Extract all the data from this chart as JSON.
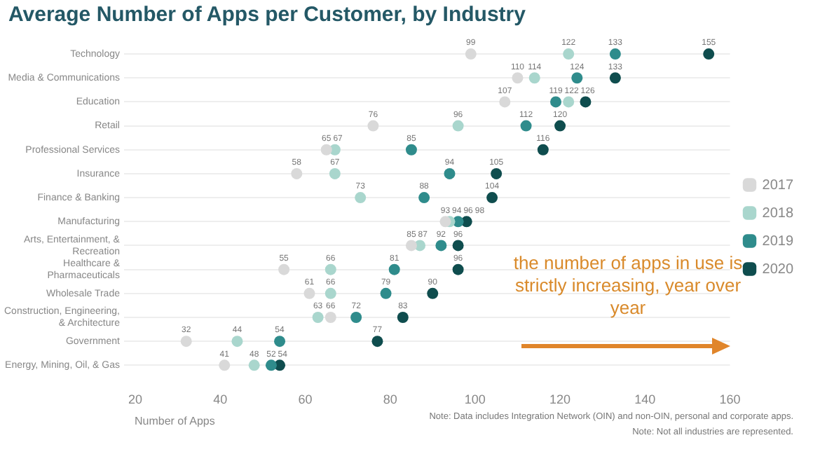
{
  "chart_data": {
    "type": "scatter",
    "orientation": "horizontal",
    "title": "Average Number of Apps per Customer, by Industry",
    "xlabel": "Number of Apps",
    "categories": [
      "Technology",
      "Media & Communications",
      "Education",
      "Retail",
      "Professional Services",
      "Insurance",
      "Finance & Banking",
      "Manufacturing",
      "Arts, Entertainment, & Recreation",
      "Healthcare & Pharmaceuticals",
      "Wholesale Trade",
      "Construction, Engineering, & Architecture",
      "Government",
      "Energy, Mining, Oil, & Gas"
    ],
    "series": [
      {
        "name": "2017",
        "color": "#d9d9d9",
        "values": [
          99,
          110,
          107,
          76,
          65,
          58,
          null,
          93,
          85,
          55,
          61,
          66,
          32,
          41
        ]
      },
      {
        "name": "2018",
        "color": "#a9d6cd",
        "values": [
          122,
          114,
          122,
          96,
          67,
          67,
          73,
          94,
          87,
          66,
          66,
          63,
          44,
          48
        ]
      },
      {
        "name": "2019",
        "color": "#2f8c8c",
        "values": [
          133,
          124,
          119,
          112,
          85,
          94,
          88,
          96,
          92,
          81,
          79,
          72,
          54,
          52
        ]
      },
      {
        "name": "2020",
        "color": "#0f4d4e",
        "values": [
          155,
          133,
          126,
          120,
          116,
          105,
          104,
          98,
          96,
          96,
          90,
          83,
          77,
          54
        ]
      }
    ],
    "xlim": [
      20,
      160
    ],
    "xticks": [
      20,
      40,
      60,
      80,
      100,
      120,
      140,
      160
    ],
    "grid": "y",
    "legend": "right",
    "marker": "circle",
    "data_labels": true,
    "annotations": [
      "the number of apps in use is strictly increasing, year over year",
      "Note: Data includes Integration Network (OIN) and non-OIN, personal and corporate apps.",
      "Note: Not all industries are represented."
    ]
  }
}
